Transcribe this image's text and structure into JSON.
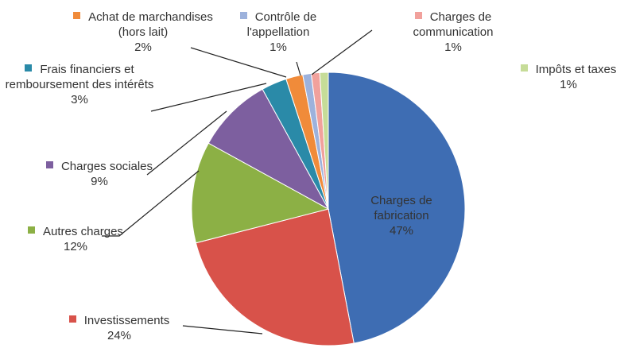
{
  "chart_data": {
    "type": "pie",
    "categories": [
      "Charges de fabrication",
      "Investissements",
      "Autres charges",
      "Charges sociales",
      "Frais financiers et remboursement des intérêts",
      "Achat de marchandises (hors lait)",
      "Contrôle de l'appellation",
      "Charges de communication",
      "Impôts et taxes"
    ],
    "values": [
      47,
      24,
      12,
      9,
      3,
      2,
      1,
      1,
      1
    ],
    "value_labels": [
      "47%",
      "24%",
      "12%",
      "9%",
      "3%",
      "2%",
      "1%",
      "1%",
      "1%"
    ],
    "colors": [
      "#3e6db3",
      "#d8524a",
      "#8cb045",
      "#7d5f9f",
      "#2a8aa8",
      "#f08b3a",
      "#9db2dc",
      "#f1a19c",
      "#c6dc98"
    ]
  }
}
